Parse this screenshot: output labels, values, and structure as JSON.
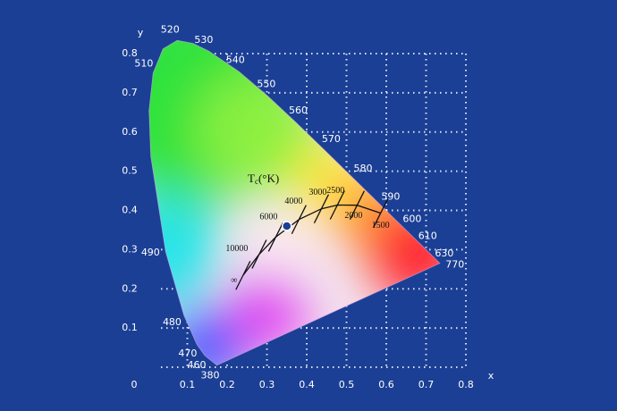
{
  "chart_data": {
    "type": "chromaticity",
    "x_label": "x",
    "y_label": "y",
    "xlim": [
      0,
      0.8
    ],
    "ylim": [
      0,
      0.8
    ],
    "xticks": [
      0,
      0.1,
      0.2,
      0.3,
      0.4,
      0.5,
      0.6,
      0.7,
      0.8
    ],
    "yticks": [
      0.1,
      0.2,
      0.3,
      0.4,
      0.5,
      0.6,
      0.7,
      0.8
    ],
    "grid": true,
    "spectral_locus": {
      "labels": [
        "380",
        "460",
        "470",
        "480",
        "490",
        null,
        null,
        "510",
        null,
        "520",
        null,
        "530",
        "540",
        "550",
        "560",
        "570",
        "580",
        "590",
        "600",
        "610",
        null,
        "630",
        "770"
      ],
      "x": [
        0.1741,
        0.144,
        0.1241,
        0.0913,
        0.0454,
        0.0082,
        0.0039,
        0.0139,
        0.0389,
        0.0743,
        0.1142,
        0.1547,
        0.2296,
        0.3016,
        0.3731,
        0.4441,
        0.5125,
        0.5752,
        0.627,
        0.6658,
        0.6915,
        0.7079,
        0.7347
      ],
      "y": [
        0.005,
        0.0297,
        0.0578,
        0.1327,
        0.295,
        0.5384,
        0.6548,
        0.7502,
        0.812,
        0.8338,
        0.8262,
        0.8059,
        0.7543,
        0.6923,
        0.6245,
        0.5547,
        0.4866,
        0.4242,
        0.3725,
        0.334,
        0.3083,
        0.292,
        0.2653
      ]
    },
    "planckian_locus": {
      "labels": [
        "∞",
        "10000",
        "6000",
        "4000",
        "3000",
        "2500",
        "2000",
        "1500"
      ],
      "x": [
        0.2399,
        0.2807,
        0.3221,
        0.3805,
        0.4369,
        0.477,
        0.5267,
        0.5857
      ],
      "y": [
        0.2342,
        0.2884,
        0.3318,
        0.3768,
        0.4041,
        0.4137,
        0.4133,
        0.3931
      ]
    },
    "temperature_label": {
      "symbol": "T",
      "subscript": "c",
      "unit": "(°K)"
    },
    "white_point": {
      "x": 0.35,
      "y": 0.36,
      "color": "#1b3f95"
    }
  }
}
